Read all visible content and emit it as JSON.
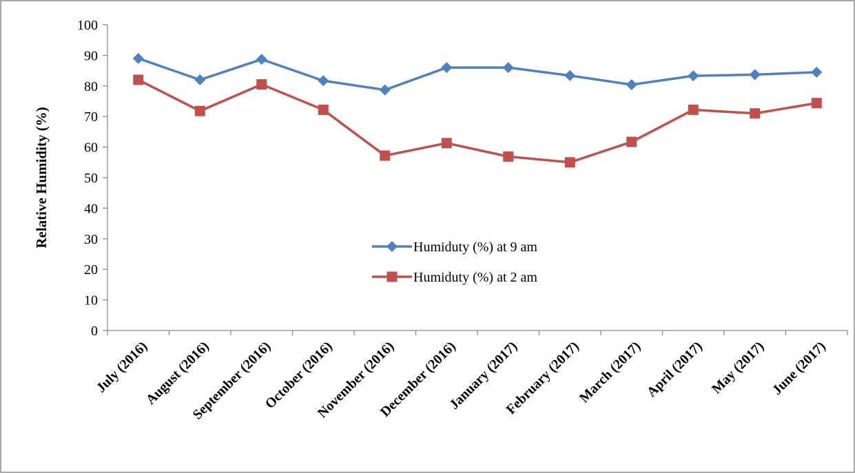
{
  "chart_data": {
    "type": "line",
    "title": "",
    "xlabel": "",
    "ylabel": "Relative Humidity (%)",
    "ylim": [
      0,
      100
    ],
    "yticks": [
      0,
      10,
      20,
      30,
      40,
      50,
      60,
      70,
      80,
      90,
      100
    ],
    "grid": false,
    "legend_position": "center-right",
    "categories": [
      "July (2016)",
      "August  (2016)",
      "September (2016)",
      "October (2016)",
      "November (2016)",
      "December (2016)",
      "January (2017)",
      "February (2017)",
      "March (2017)",
      "April (2017)",
      "May (2017)",
      "June (2017)"
    ],
    "series": [
      {
        "name": "Humiduty (%) at 9 am",
        "color": "#4f81bd",
        "marker": "diamond",
        "values": [
          89,
          82,
          88.7,
          81.7,
          78.7,
          86,
          86,
          83.4,
          80.4,
          83.3,
          83.7,
          84.5
        ]
      },
      {
        "name": "Humiduty (%) at 2 am",
        "color": "#c0504d",
        "marker": "square",
        "values": [
          82,
          71.8,
          80.5,
          72.2,
          57.2,
          61.3,
          56.9,
          55,
          61.7,
          72.2,
          71,
          74.4
        ]
      }
    ]
  }
}
